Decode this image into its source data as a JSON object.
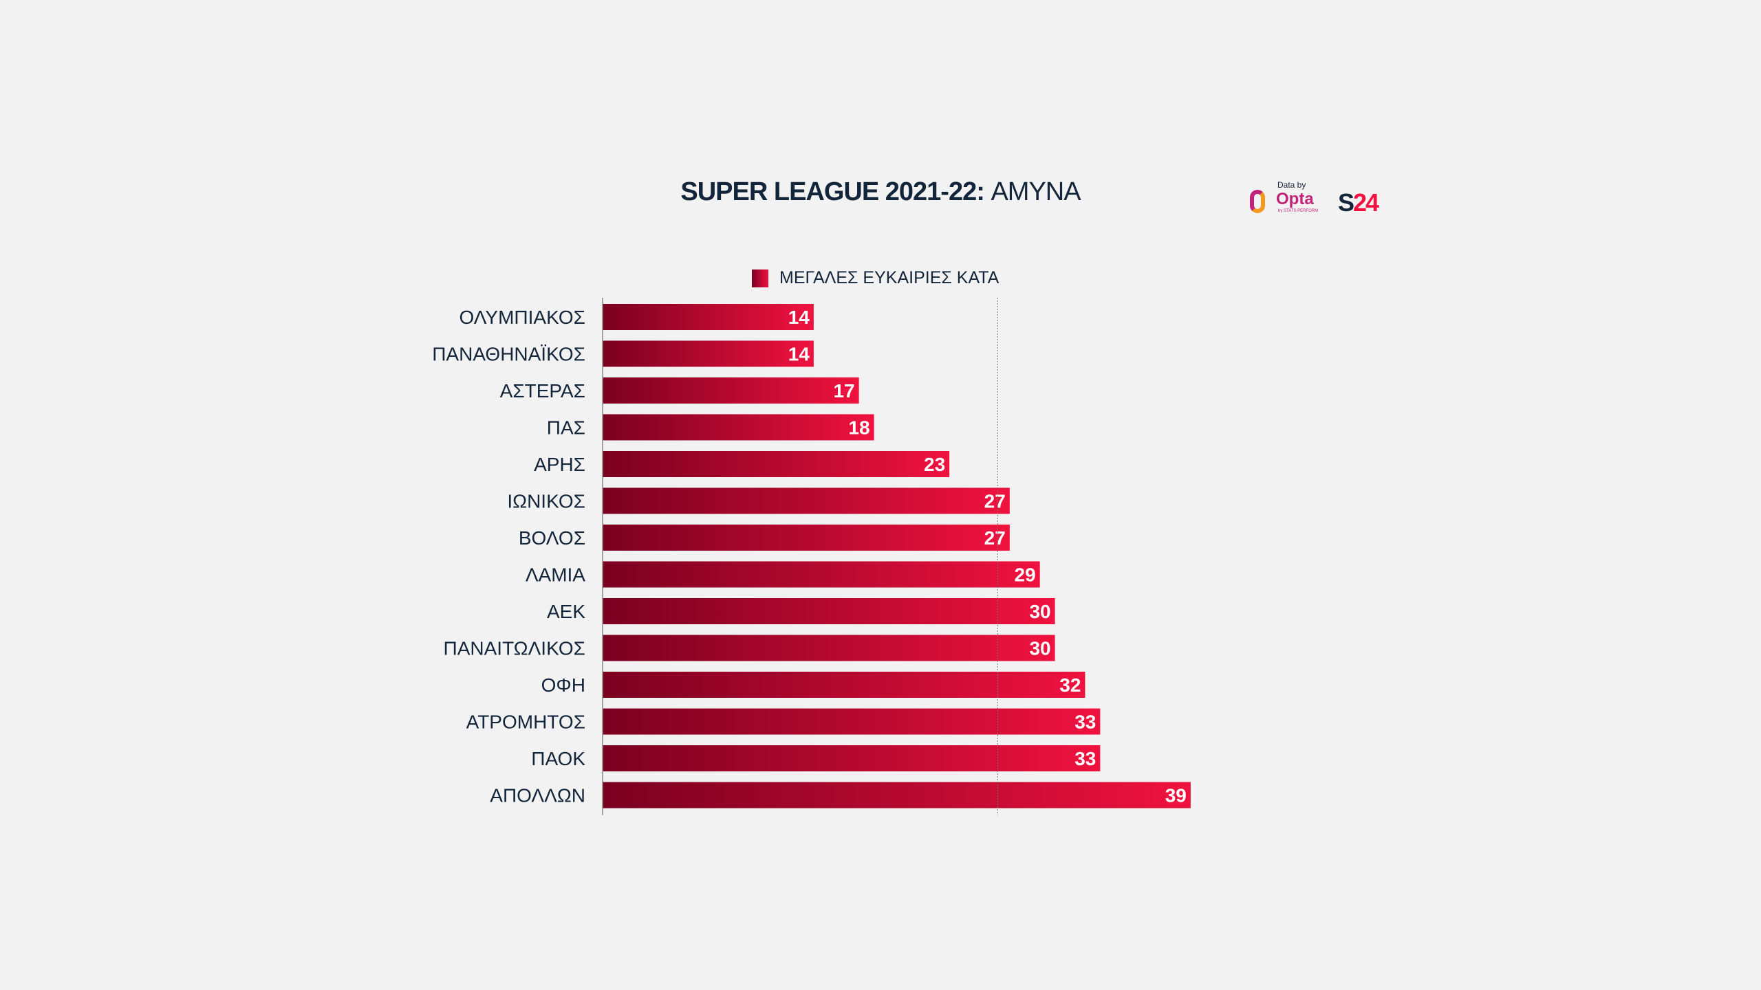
{
  "title": {
    "bold": "SUPER LEAGUE 2021-22:",
    "light": "ΑΜΥΝΑ"
  },
  "logos": {
    "data_by": "Data by",
    "opta": "Opta",
    "opta_sub": "by STATS PERFORM",
    "s24_a": "S",
    "s24_b": "24"
  },
  "colors": {
    "bar_start": "#7a0020",
    "bar_end": "#f0123f",
    "text": "#13253a",
    "background": "#f2f2f2"
  },
  "chart_data": {
    "type": "bar",
    "orientation": "horizontal",
    "title": "SUPER LEAGUE 2021-22: ΑΜΥΝΑ",
    "legend": [
      "ΜΕΓΑΛΕΣ ΕΥΚΑΙΡΙΕΣ ΚΑΤΑ"
    ],
    "legend_position": "top",
    "categories": [
      "ΟΛΥΜΠΙΑΚΟΣ",
      "ΠΑΝΑΘΗΝΑΪΚΟΣ",
      "ΑΣΤΕΡΑΣ",
      "ΠΑΣ",
      "ΑΡΗΣ",
      "ΙΩΝΙΚΟΣ",
      "ΒΟΛΟΣ",
      "ΛΑΜΙΑ",
      "ΑΕΚ",
      "ΠΑΝΑΙΤΩΛΙΚΟΣ",
      "ΟΦΗ",
      "ΑΤΡΟΜΗΤΟΣ",
      "ΠΑΟΚ",
      "ΑΠΟΛΛΩΝ"
    ],
    "values": [
      14,
      14,
      17,
      18,
      23,
      27,
      27,
      29,
      30,
      30,
      32,
      33,
      33,
      39
    ],
    "reference_line": 26.2,
    "xlim": [
      0,
      39
    ],
    "grid": false
  }
}
